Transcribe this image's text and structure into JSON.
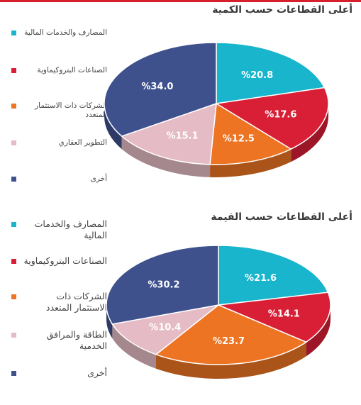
{
  "chart_data": [
    {
      "type": "pie",
      "title": "أعلى القطاعات حسب الكمية",
      "legend_position": "left",
      "slices": [
        {
          "label": "المصارف والخدمات المالية",
          "value": 20.8,
          "text": "%20.8",
          "color": "#19b5cd"
        },
        {
          "label": "الصناعات البتروكيماوية",
          "value": 17.6,
          "text": "%17.6",
          "color": "#d91f36"
        },
        {
          "label": "الشركات ذات الاستثمار المتعدد",
          "value": 12.5,
          "text": "%12.5",
          "color": "#ec7423"
        },
        {
          "label": "التطوير العقاري",
          "value": 15.1,
          "text": "%15.1",
          "color": "#e5bcc5"
        },
        {
          "label": "أخرى",
          "value": 34.0,
          "text": "%34.0",
          "color": "#3e518d"
        }
      ]
    },
    {
      "type": "pie",
      "title": "أعلى القطاعات حسب القيمة",
      "legend_position": "left",
      "slices": [
        {
          "label": "المصارف والخدمات المالية",
          "value": 21.6,
          "text": "%21.6",
          "color": "#19b5cd"
        },
        {
          "label": "الصناعات البتروكيماوية",
          "value": 14.1,
          "text": "%14.1",
          "color": "#d91f36"
        },
        {
          "label": "الشركات ذات الاستثمار المتعدد",
          "value": 23.7,
          "text": "%23.7",
          "color": "#ec7423"
        },
        {
          "label": "الطاقة والمرافق الخدمية",
          "value": 10.4,
          "text": "%10.4",
          "color": "#e5bcc5"
        },
        {
          "label": "أخرى",
          "value": 30.2,
          "text": "%30.2",
          "color": "#3e518d"
        }
      ]
    }
  ]
}
